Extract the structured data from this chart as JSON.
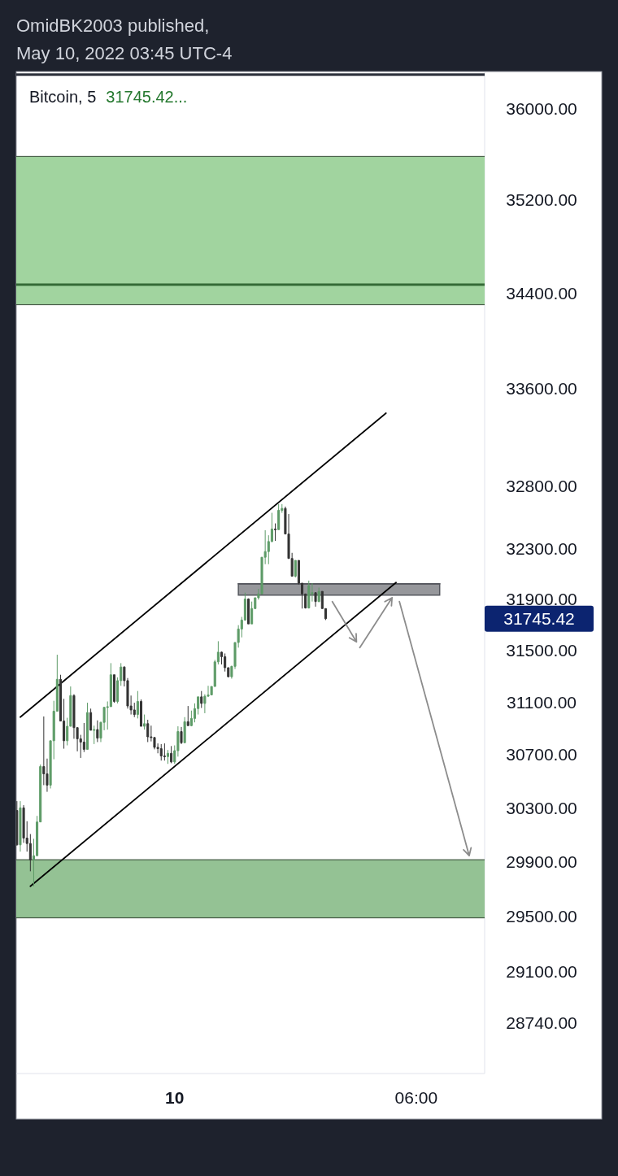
{
  "chart_data": {
    "type": "candlestick",
    "title": "Bitcoin, 5",
    "annotations": [
      "OmidBK2003 published,",
      "May 10, 2022 03:45 UTC-4",
      "31745.42...",
      "31745.42"
    ],
    "xlim": [
      "2022-05-09T20:04",
      "2022-05-10T07:42"
    ],
    "xticks": [
      {
        "value": "2022-05-10T00:00",
        "label": "10"
      },
      {
        "value": "2022-05-10T06:00",
        "label": "06:00"
      }
    ],
    "ylim": [
      28380,
      36320
    ],
    "log": "y",
    "yticks": [
      {
        "value": 28740,
        "label": "28740.00"
      },
      {
        "value": 29100,
        "label": "29100.00"
      },
      {
        "value": 29500,
        "label": "29500.00"
      },
      {
        "value": 29900,
        "label": "29900.00"
      },
      {
        "value": 30300,
        "label": "30300.00"
      },
      {
        "value": 30700,
        "label": "30700.00"
      },
      {
        "value": 31100,
        "label": "31100.00"
      },
      {
        "value": 31500,
        "label": "31500.00"
      },
      {
        "value": 31900,
        "label": "31900.00"
      },
      {
        "value": 32300,
        "label": "32300.00"
      },
      {
        "value": 32800,
        "label": "32800.00"
      },
      {
        "value": 33600,
        "label": "33600.00"
      },
      {
        "value": 34400,
        "label": "34400.00"
      },
      {
        "value": 35200,
        "label": "35200.00"
      },
      {
        "value": 36000,
        "label": "36000.00"
      }
    ],
    "bands": [
      {
        "axis": "y",
        "from": 34300,
        "to": 35575,
        "color": "#a1d49f"
      },
      {
        "axis": "y",
        "from": 29490,
        "to": 29915,
        "color": "#94c294"
      }
    ],
    "ref_lines": [
      {
        "axis": "y",
        "value": 34470,
        "color": "#356b37"
      },
      {
        "axis": "y",
        "value": 36300,
        "color": "#2a2e39"
      }
    ],
    "series": [
      {
        "type": "line",
        "color": "#55575e",
        "x": [
          "2022-05-10T01:35",
          "2022-05-10T06:35"
        ],
        "values": [
          32020,
          32020
        ],
        "lower": [
          31930,
          31930
        ],
        "upper": [
          32020,
          32020
        ]
      },
      {
        "type": "line",
        "color": "#000000",
        "x": [
          "2022-05-09T20:10",
          "2022-05-10T05:15"
        ],
        "values": [
          30985,
          33395
        ]
      },
      {
        "type": "line",
        "color": "#000000",
        "x": [
          "2022-05-09T20:25",
          "2022-05-10T05:30"
        ],
        "values": [
          29720,
          32030
        ]
      },
      {
        "type": "line",
        "color": "#8c8c8c",
        "x": [
          "2022-05-10T03:55",
          "2022-05-10T04:31",
          "2022-05-10T04:33",
          "2022-05-10T04:36",
          "2022-05-10T05:24",
          "2022-05-10T05:30",
          "2022-05-10T05:35",
          "2022-05-10T07:19"
        ],
        "values": [
          31880,
          31565,
          null,
          31520,
          31910,
          null,
          31880,
          29945
        ]
      },
      {
        "x": [
          "2022-05-09T20:05",
          "2022-05-09T20:10",
          "2022-05-09T20:15",
          "2022-05-09T20:20",
          "2022-05-09T20:25",
          "2022-05-09T20:30",
          "2022-05-09T20:35",
          "2022-05-09T20:40",
          "2022-05-09T20:45",
          "2022-05-09T20:50",
          "2022-05-09T20:55",
          "2022-05-09T21:00",
          "2022-05-09T21:05",
          "2022-05-09T21:10",
          "2022-05-09T21:15",
          "2022-05-09T21:20",
          "2022-05-09T21:25",
          "2022-05-09T21:30",
          "2022-05-09T21:35",
          "2022-05-09T21:40",
          "2022-05-09T21:45",
          "2022-05-09T21:50",
          "2022-05-09T21:55",
          "2022-05-09T22:00",
          "2022-05-09T22:05",
          "2022-05-09T22:10",
          "2022-05-09T22:15",
          "2022-05-09T22:20",
          "2022-05-09T22:25",
          "2022-05-09T22:30",
          "2022-05-09T22:35",
          "2022-05-09T22:40",
          "2022-05-09T22:45",
          "2022-05-09T22:50",
          "2022-05-09T22:55",
          "2022-05-09T23:00",
          "2022-05-09T23:05",
          "2022-05-09T23:10",
          "2022-05-09T23:15",
          "2022-05-09T23:20",
          "2022-05-09T23:25",
          "2022-05-09T23:30",
          "2022-05-09T23:35",
          "2022-05-09T23:40",
          "2022-05-09T23:45",
          "2022-05-09T23:50",
          "2022-05-09T23:55",
          "2022-05-10T00:00",
          "2022-05-10T00:05",
          "2022-05-10T00:10",
          "2022-05-10T00:15",
          "2022-05-10T00:20",
          "2022-05-10T00:25",
          "2022-05-10T00:30",
          "2022-05-10T00:35",
          "2022-05-10T00:40",
          "2022-05-10T00:45",
          "2022-05-10T00:50",
          "2022-05-10T00:55",
          "2022-05-10T01:00",
          "2022-05-10T01:05",
          "2022-05-10T01:10",
          "2022-05-10T01:15",
          "2022-05-10T01:20",
          "2022-05-10T01:25",
          "2022-05-10T01:30",
          "2022-05-10T01:35",
          "2022-05-10T01:40",
          "2022-05-10T01:45",
          "2022-05-10T01:50",
          "2022-05-10T01:55",
          "2022-05-10T02:00",
          "2022-05-10T02:05",
          "2022-05-10T02:10",
          "2022-05-10T02:15",
          "2022-05-10T02:20",
          "2022-05-10T02:25",
          "2022-05-10T02:30",
          "2022-05-10T02:35",
          "2022-05-10T02:40",
          "2022-05-10T02:45",
          "2022-05-10T02:50",
          "2022-05-10T02:55",
          "2022-05-10T03:00",
          "2022-05-10T03:05",
          "2022-05-10T03:10",
          "2022-05-10T03:15",
          "2022-05-10T03:20",
          "2022-05-10T03:25",
          "2022-05-10T03:30",
          "2022-05-10T03:35",
          "2022-05-10T03:40",
          "2022-05-10T03:45"
        ],
        "ohlc": [
          [
            30280,
            30350,
            30020,
            30025
          ],
          [
            30025,
            30350,
            29975,
            30300
          ],
          [
            30300,
            30320,
            30040,
            30075
          ],
          [
            30075,
            30200,
            29975,
            30035
          ],
          [
            30035,
            30105,
            29830,
            29915
          ],
          [
            29915,
            30070,
            29720,
            29945
          ],
          [
            29945,
            30240,
            29945,
            30195
          ],
          [
            30195,
            30625,
            30195,
            30610
          ],
          [
            30610,
            30990,
            30470,
            30555
          ],
          [
            30555,
            30670,
            30420,
            30470
          ],
          [
            30470,
            30805,
            30445,
            30805
          ],
          [
            30805,
            31110,
            30665,
            31030
          ],
          [
            31030,
            31465,
            31030,
            31275
          ],
          [
            31275,
            31310,
            30955,
            30955
          ],
          [
            30955,
            31125,
            30745,
            30805
          ],
          [
            30805,
            30980,
            30770,
            30915
          ],
          [
            30915,
            31220,
            30915,
            31150
          ],
          [
            31150,
            31160,
            30820,
            30905
          ],
          [
            30905,
            30905,
            30725,
            30820
          ],
          [
            30820,
            30850,
            30675,
            30795
          ],
          [
            30795,
            30940,
            30720,
            30740
          ],
          [
            30740,
            31095,
            30740,
            31020
          ],
          [
            31020,
            31050,
            30885,
            30885
          ],
          [
            30885,
            30920,
            30780,
            30890
          ],
          [
            30890,
            30960,
            30795,
            30825
          ],
          [
            30825,
            30950,
            30795,
            30945
          ],
          [
            30945,
            31060,
            30885,
            31060
          ],
          [
            31060,
            31105,
            30890,
            31065
          ],
          [
            31065,
            31400,
            31065,
            31310
          ],
          [
            31310,
            31310,
            31095,
            31105
          ],
          [
            31105,
            31290,
            31090,
            31265
          ],
          [
            31265,
            31400,
            31225,
            31370
          ],
          [
            31370,
            31375,
            31220,
            31265
          ],
          [
            31265,
            31285,
            31050,
            31070
          ],
          [
            31070,
            31150,
            31005,
            31040
          ],
          [
            31040,
            31095,
            30985,
            31005
          ],
          [
            31005,
            31185,
            30975,
            31105
          ],
          [
            31105,
            31120,
            30915,
            30915
          ],
          [
            30915,
            31005,
            30890,
            30935
          ],
          [
            30935,
            30965,
            30795,
            30835
          ],
          [
            30835,
            30920,
            30800,
            30830
          ],
          [
            30830,
            30830,
            30740,
            30755
          ],
          [
            30755,
            30785,
            30710,
            30745
          ],
          [
            30745,
            30780,
            30655,
            30690
          ],
          [
            30690,
            30785,
            30655,
            30685
          ],
          [
            30685,
            30735,
            30630,
            30710
          ],
          [
            30710,
            30765,
            30635,
            30645
          ],
          [
            30645,
            30770,
            30630,
            30730
          ],
          [
            30730,
            30915,
            30685,
            30875
          ],
          [
            30875,
            30910,
            30780,
            30790
          ],
          [
            30790,
            30985,
            30790,
            30950
          ],
          [
            30950,
            31070,
            30920,
            30920
          ],
          [
            30920,
            31035,
            30915,
            30975
          ],
          [
            30975,
            31090,
            30945,
            31050
          ],
          [
            31050,
            31140,
            31005,
            31140
          ],
          [
            31140,
            31185,
            31055,
            31090
          ],
          [
            31090,
            31160,
            31015,
            31145
          ],
          [
            31145,
            31225,
            31140,
            31155
          ],
          [
            31155,
            31220,
            31155,
            31220
          ],
          [
            31220,
            31425,
            31220,
            31410
          ],
          [
            31410,
            31570,
            31390,
            31485
          ],
          [
            31485,
            31490,
            31390,
            31450
          ],
          [
            31450,
            31475,
            31335,
            31365
          ],
          [
            31365,
            31365,
            31290,
            31295
          ],
          [
            31295,
            31380,
            31280,
            31375
          ],
          [
            31375,
            31560,
            31355,
            31560
          ],
          [
            31560,
            31695,
            31520,
            31665
          ],
          [
            31665,
            31760,
            31600,
            31735
          ],
          [
            31735,
            31950,
            31730,
            31900
          ],
          [
            31900,
            31905,
            31705,
            31705
          ],
          [
            31705,
            31880,
            31705,
            31825
          ],
          [
            31825,
            31910,
            31820,
            31910
          ],
          [
            31910,
            31980,
            31895,
            31940
          ],
          [
            31940,
            32230,
            31940,
            32230
          ],
          [
            32230,
            32445,
            32175,
            32275
          ],
          [
            32275,
            32405,
            32175,
            32355
          ],
          [
            32355,
            32585,
            32350,
            32455
          ],
          [
            32455,
            32500,
            32360,
            32450
          ],
          [
            32450,
            32655,
            32450,
            32605
          ],
          [
            32605,
            32655,
            32585,
            32620
          ],
          [
            32620,
            32635,
            32415,
            32415
          ],
          [
            32415,
            32575,
            32220,
            32220
          ],
          [
            32220,
            32265,
            32080,
            32080
          ],
          [
            32080,
            32205,
            32070,
            32205
          ],
          [
            32205,
            32205,
            32015,
            32025
          ],
          [
            32025,
            32025,
            31825,
            31940
          ],
          [
            31940,
            31940,
            31825,
            31830
          ],
          [
            31830,
            32045,
            31825,
            32005
          ],
          [
            31940,
            32025,
            31880,
            31950
          ],
          [
            31950,
            31950,
            31840,
            31880
          ],
          [
            31880,
            31990,
            31875,
            31960
          ],
          [
            31960,
            31960,
            31825,
            31825
          ],
          [
            31825,
            31825,
            31735,
            31745.42
          ]
        ],
        "colors": [
          "#333333",
          "#5d9b67",
          "#333333",
          "#333333",
          "#333333",
          "#5d9b67",
          "#5d9b67",
          "#5d9b67",
          "#333333",
          "#333333",
          "#5d9b67",
          "#5d9b67",
          "#5d9b67",
          "#333333",
          "#333333",
          "#5d9b67",
          "#5d9b67",
          "#333333",
          "#333333",
          "#333333",
          "#333333",
          "#5d9b67",
          "#333333",
          "#5d9b67",
          "#333333",
          "#5d9b67",
          "#5d9b67",
          "#5d9b67",
          "#5d9b67",
          "#333333",
          "#5d9b67",
          "#5d9b67",
          "#333333",
          "#333333",
          "#333333",
          "#333333",
          "#5d9b67",
          "#333333",
          "#5d9b67",
          "#333333",
          "#333333",
          "#333333",
          "#333333",
          "#333333",
          "#333333",
          "#5d9b67",
          "#333333",
          "#5d9b67",
          "#5d9b67",
          "#333333",
          "#5d9b67",
          "#333333",
          "#5d9b67",
          "#5d9b67",
          "#5d9b67",
          "#333333",
          "#5d9b67",
          "#5d9b67",
          "#5d9b67",
          "#5d9b67",
          "#5d9b67",
          "#333333",
          "#333333",
          "#333333",
          "#5d9b67",
          "#5d9b67",
          "#5d9b67",
          "#5d9b67",
          "#5d9b67",
          "#333333",
          "#5d9b67",
          "#5d9b67",
          "#5d9b67",
          "#5d9b67",
          "#5d9b67",
          "#5d9b67",
          "#5d9b67",
          "#333333",
          "#5d9b67",
          "#5d9b67",
          "#333333",
          "#333333",
          "#333333",
          "#5d9b67",
          "#333333",
          "#333333",
          "#333333",
          "#5d9b67",
          "#5d9b67",
          "#333333",
          "#5d9b67",
          "#333333",
          "#333333"
        ]
      }
    ]
  }
}
